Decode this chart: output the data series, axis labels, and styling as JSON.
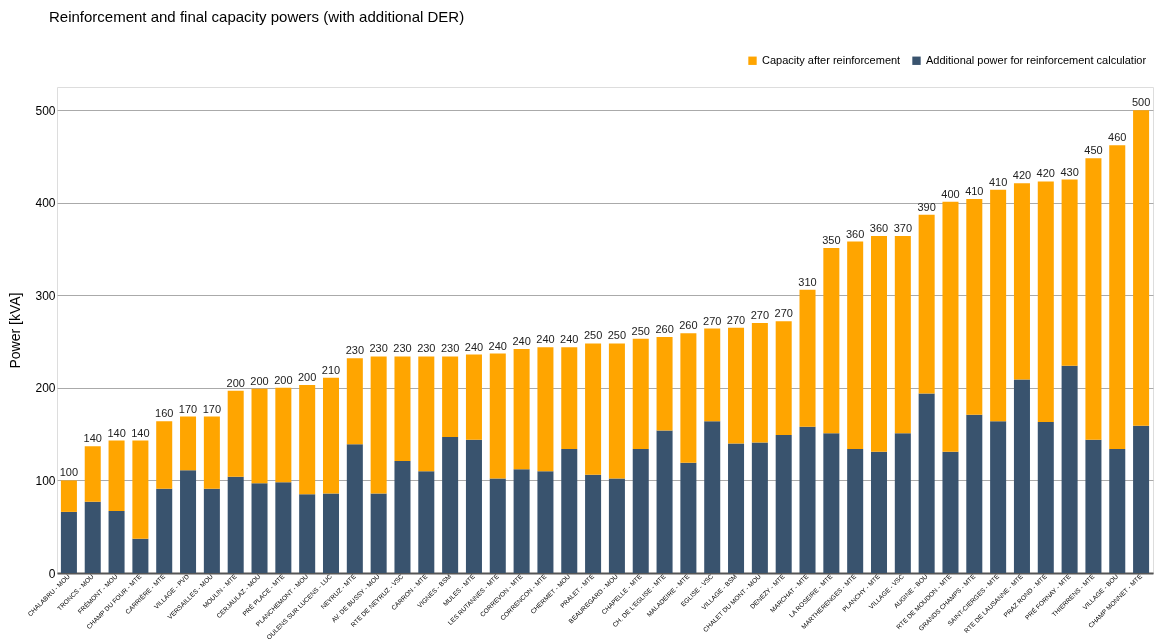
{
  "chart_data": {
    "type": "bar",
    "title": "Reinforcement and final capacity powers (with additional DER)",
    "ylabel": "Power [kVA]",
    "categories": [
      "CHALABRU - MOU",
      "TRONCS - MOU",
      "FRÉMONT - MOU",
      "CHAMP DU FOUR - MTE",
      "CARRIÈRE - MTE",
      "VILLAGE - PVD",
      "VERSAILLES - MOU",
      "MOULIN - MTE",
      "CERJAULAZ - MOU",
      "PRÉ PLACE - MTE",
      "PLANCHEMONT - MOU",
      "OULENS SUR LUCENS - LUC",
      "NEYRUZ - MTE",
      "AV. DE BUSSY - MOU",
      "RTE DE NEYRUZ - VSC",
      "CARRON - MTE",
      "VIGNES - BSM",
      "MULES - MTE",
      "LES RUTANNES - MTE",
      "CORREVON - MTE",
      "CORRENCON - MTE",
      "CHERMET - MOU",
      "PRALET - MTE",
      "BEAUREGARD - MOU",
      "CHAPELLE - MTE",
      "CH. DE L'EGLISE - MTE",
      "MALADEIRE - MTE",
      "EGLISE - VSC",
      "VILLAGE - BSM",
      "CHALET DU MONT - MOU",
      "DENEZY - MTE",
      "MARCHAT - MTE",
      "LA ROSEIRE - MTE",
      "MARTHERENGES - MTE",
      "PLANCHY - MTE",
      "VILLAGE - VSC",
      "AUGINE - BOU",
      "RTE DE MOUDON - MTE",
      "GRANDS CHAMPS - MTE",
      "SAINT-CIERGES - MTE",
      "RTE DE LAUSANNE - MTE",
      "PRAZ ROND - MTE",
      "PRÉ FORNAY - MTE",
      "THIERRENS - MTE",
      "VILLAGE - BOU",
      "CHAMP MONNET - MTE"
    ],
    "stacked": true,
    "series": [
      {
        "name": "Additional power for reinforcement calculatior",
        "color": "#39536e",
        "values": [
          66,
          77,
          67,
          37,
          91,
          111,
          91,
          104,
          97,
          98,
          85,
          86,
          139,
          86,
          121,
          110,
          147,
          144,
          102,
          112,
          110,
          134,
          106,
          102,
          134,
          154,
          119,
          164,
          140,
          141,
          149,
          158,
          151,
          134,
          131,
          151,
          194,
          131,
          171,
          164,
          209,
          163,
          224,
          144,
          134,
          159
        ]
      },
      {
        "name": "Capacity after reinforcement",
        "color": "#ffa500",
        "values": [
          34,
          60,
          76,
          106,
          73,
          58,
          78,
          93,
          102,
          102,
          118,
          125,
          93,
          148,
          113,
          124,
          87,
          92,
          135,
          130,
          134,
          110,
          142,
          146,
          119,
          101,
          140,
          100,
          125,
          129,
          123,
          148,
          200,
          224,
          233,
          213,
          193,
          270,
          233,
          250,
          212,
          260,
          201,
          304,
          328,
          341
        ]
      }
    ],
    "annotations": [
      {
        "text": "100",
        "x": "CHALABRU - MOU",
        "y": 100
      },
      {
        "text": "140",
        "x": "TRONCS - MOU",
        "y": 137
      },
      {
        "text": "140",
        "x": "FRÉMONT - MOU",
        "y": 143
      },
      {
        "text": "140",
        "x": "CHAMP DU FOUR - MTE",
        "y": 143
      },
      {
        "text": "160",
        "x": "CARRIÈRE - MTE",
        "y": 164
      },
      {
        "text": "170",
        "x": "VILLAGE - PVD",
        "y": 169
      },
      {
        "text": "170",
        "x": "VERSAILLES - MOU",
        "y": 169
      },
      {
        "text": "200",
        "x": "MOULIN - MTE",
        "y": 197
      },
      {
        "text": "200",
        "x": "CERJAULAZ - MOU",
        "y": 199
      },
      {
        "text": "200",
        "x": "PRÉ PLACE - MTE",
        "y": 200
      },
      {
        "text": "200",
        "x": "PLANCHEMONT - MOU",
        "y": 203
      },
      {
        "text": "210",
        "x": "OULENS SUR LUCENS - LUC",
        "y": 211
      },
      {
        "text": "230",
        "x": "NEYRUZ - MTE",
        "y": 232
      },
      {
        "text": "230",
        "x": "AV. DE BUSSY - MOU",
        "y": 234
      },
      {
        "text": "230",
        "x": "RTE DE NEYRUZ - VSC",
        "y": 234
      },
      {
        "text": "230",
        "x": "CARRON - MTE",
        "y": 234
      },
      {
        "text": "230",
        "x": "VIGNES - BSM",
        "y": 234
      },
      {
        "text": "240",
        "x": "MULES - MTE",
        "y": 236
      },
      {
        "text": "240",
        "x": "LES RUTANNES - MTE",
        "y": 237
      },
      {
        "text": "240",
        "x": "CORREVON - MTE",
        "y": 242
      },
      {
        "text": "240",
        "x": "CORRENCON - MTE",
        "y": 244
      },
      {
        "text": "240",
        "x": "CHERMET - MOU",
        "y": 244
      },
      {
        "text": "250",
        "x": "PRALET - MTE",
        "y": 248
      },
      {
        "text": "250",
        "x": "BEAUREGARD - MOU",
        "y": 248
      },
      {
        "text": "250",
        "x": "CHAPELLE - MTE",
        "y": 253
      },
      {
        "text": "260",
        "x": "CH. DE L'EGLISE - MTE",
        "y": 255
      },
      {
        "text": "260",
        "x": "MALADEIRE - MTE",
        "y": 259
      },
      {
        "text": "270",
        "x": "EGLISE - VSC",
        "y": 264
      },
      {
        "text": "270",
        "x": "VILLAGE - BSM",
        "y": 265
      },
      {
        "text": "270",
        "x": "CHALET DU MONT - MOU",
        "y": 270
      },
      {
        "text": "270",
        "x": "DENEZY - MTE",
        "y": 272
      },
      {
        "text": "310",
        "x": "MARCHAT - MTE",
        "y": 306
      },
      {
        "text": "350",
        "x": "LA ROSEIRE - MTE",
        "y": 351
      },
      {
        "text": "360",
        "x": "MARTHERENGES - MTE",
        "y": 358
      },
      {
        "text": "360",
        "x": "PLANCHY - MTE",
        "y": 364
      },
      {
        "text": "370",
        "x": "VILLAGE - VSC",
        "y": 364
      },
      {
        "text": "390",
        "x": "AUGINE - BOU",
        "y": 387
      },
      {
        "text": "400",
        "x": "RTE DE MOUDON - MTE",
        "y": 401
      },
      {
        "text": "410",
        "x": "GRANDS CHAMPS - MTE",
        "y": 404
      },
      {
        "text": "410",
        "x": "SAINT-CIERGES - MTE",
        "y": 414
      },
      {
        "text": "420",
        "x": "RTE DE LAUSANNE - MTE",
        "y": 421
      },
      {
        "text": "420",
        "x": "PRAZ ROND - MTE",
        "y": 423
      },
      {
        "text": "430",
        "x": "PRÉ FORNAY - MTE",
        "y": 425
      },
      {
        "text": "450",
        "x": "THIERRENS - MTE",
        "y": 448
      },
      {
        "text": "460",
        "x": "VILLAGE - BOU",
        "y": 462
      },
      {
        "text": "500",
        "x": "CHAMP MONNET - MTE",
        "y": 500
      }
    ],
    "ylim": [
      0,
      525
    ],
    "yticks": [
      0,
      100,
      200,
      300,
      400,
      500
    ],
    "grid": "y",
    "legend": "top right"
  }
}
